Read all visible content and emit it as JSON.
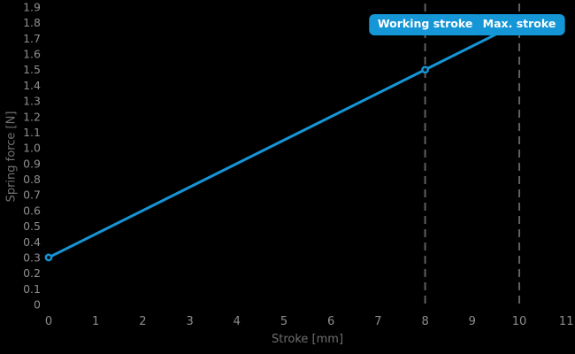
{
  "chart_data": {
    "type": "line",
    "title": "",
    "xlabel": "Stroke [mm]",
    "ylabel": "Spring force [N]",
    "xlim": [
      0,
      11
    ],
    "ylim": [
      0,
      1.9
    ],
    "grid": false,
    "background": "#000000",
    "x_ticks": [
      0,
      1,
      2,
      3,
      4,
      5,
      6,
      7,
      8,
      9,
      10,
      11
    ],
    "y_tick_step": 0.1,
    "y_tick_labels": [
      "0",
      "0.1",
      "0.2",
      "0.3",
      "0.4",
      "0.5",
      "0.6",
      "0.7",
      "0.8",
      "0.9",
      "1.0",
      "1.1",
      "1.2",
      "1.3",
      "1.4",
      "1.5",
      "1.6",
      "1.7",
      "1.8",
      "1.9"
    ],
    "colors": {
      "accent_blue": "#1496d7",
      "tick_text": "#8e8e8e",
      "axis_label_text": "#6f6f6f",
      "dashed_line": "#5f5f5f",
      "marker_fill": "#111111",
      "badge_text": "#ffffff"
    },
    "series": [
      {
        "name": "Spring force",
        "color": "#1496d7",
        "points": [
          [
            0,
            0.3
          ],
          [
            8,
            1.5
          ],
          [
            10,
            1.8
          ]
        ],
        "marker_points": [
          [
            0,
            0.3
          ],
          [
            8,
            1.5
          ]
        ]
      }
    ],
    "annotations": [
      {
        "label": "Working stroke",
        "x": 8
      },
      {
        "label": "Max. stroke",
        "x": 10
      }
    ]
  }
}
